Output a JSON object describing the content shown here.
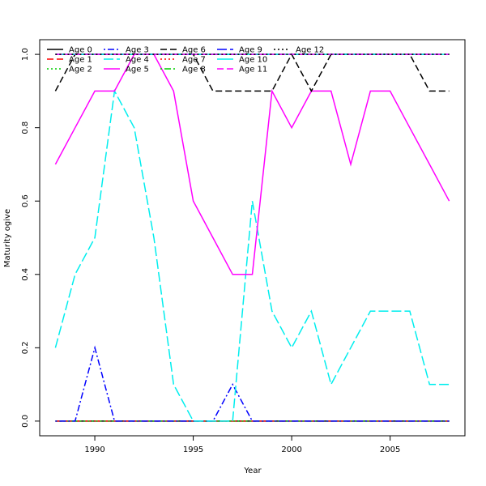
{
  "chart_data": {
    "type": "line",
    "title": "",
    "xlabel": "Year",
    "ylabel": "Maturity ogive",
    "xlim": [
      1987.2,
      2008.8
    ],
    "ylim": [
      -0.04,
      1.04
    ],
    "x_ticks": [
      1990,
      1995,
      2000,
      2005
    ],
    "y_ticks": [
      0.0,
      0.2,
      0.4,
      0.6,
      0.8,
      1.0
    ],
    "y_tick_labels": [
      "0.0",
      "0.2",
      "0.4",
      "0.6",
      "0.8",
      "1.0"
    ],
    "grid": false,
    "legend_position": "top-left",
    "x": [
      1988,
      1989,
      1990,
      1991,
      1992,
      1993,
      1994,
      1995,
      1996,
      1997,
      1998,
      1999,
      2000,
      2001,
      2002,
      2003,
      2004,
      2005,
      2006,
      2007,
      2008
    ],
    "series": [
      {
        "name": "Age 0",
        "color": "#000000",
        "dash": "solid",
        "values": [
          0,
          0,
          0,
          0,
          0,
          0,
          0,
          0,
          0,
          0,
          0,
          0,
          0,
          0,
          0,
          0,
          0,
          0,
          0,
          0,
          0
        ]
      },
      {
        "name": "Age 1",
        "color": "#ff0000",
        "dash": "dashed",
        "values": [
          0,
          0,
          0,
          0,
          0,
          0,
          0,
          0,
          0,
          0,
          0,
          0,
          0,
          0,
          0,
          0,
          0,
          0,
          0,
          0,
          0
        ]
      },
      {
        "name": "Age 2",
        "color": "#00cd00",
        "dash": "dotted",
        "values": [
          0,
          0,
          0,
          0,
          0,
          0,
          0,
          0,
          0,
          0,
          0,
          0,
          0,
          0,
          0,
          0,
          0,
          0,
          0,
          0,
          0
        ]
      },
      {
        "name": "Age 3",
        "color": "#0000ff",
        "dash": "dotdash",
        "values": [
          0,
          0,
          0.2,
          0,
          0,
          0,
          0,
          0,
          0,
          0.1,
          0,
          0,
          0,
          0,
          0,
          0,
          0,
          0,
          0,
          0,
          0
        ]
      },
      {
        "name": "Age 4",
        "color": "#00eeee",
        "dash": "longdash",
        "values": [
          0.2,
          0.4,
          0.5,
          0.9,
          0.8,
          0.5,
          0.1,
          0,
          0,
          0,
          0.6,
          0.3,
          0.2,
          0.3,
          0.1,
          0.2,
          0.3,
          0.3,
          0.3,
          0.1,
          0.1
        ]
      },
      {
        "name": "Age 5",
        "color": "#ff00ff",
        "dash": "solid",
        "values": [
          0.7,
          0.8,
          0.9,
          0.9,
          1.0,
          1.0,
          0.9,
          0.6,
          0.5,
          0.4,
          0.4,
          0.9,
          0.8,
          0.9,
          0.9,
          0.7,
          0.9,
          0.9,
          0.8,
          0.7,
          0.6
        ]
      },
      {
        "name": "Age 6",
        "color": "#000000",
        "dash": "dashed",
        "values": [
          0.9,
          1.0,
          1.0,
          1.0,
          1.0,
          1.0,
          1.0,
          1.0,
          0.9,
          0.9,
          0.9,
          0.9,
          1.0,
          0.9,
          1.0,
          1.0,
          1.0,
          1.0,
          1.0,
          0.9,
          0.9
        ]
      },
      {
        "name": "Age 7",
        "color": "#ff0000",
        "dash": "dotted",
        "values": [
          1,
          1,
          1,
          1,
          1,
          1,
          1,
          1,
          1,
          1,
          1,
          1,
          1,
          1,
          1,
          1,
          1,
          1,
          1,
          1,
          1
        ]
      },
      {
        "name": "Age 8",
        "color": "#00cd00",
        "dash": "dotdash",
        "values": [
          1,
          1,
          1,
          1,
          1,
          1,
          1,
          1,
          1,
          1,
          1,
          1,
          1,
          1,
          1,
          1,
          1,
          1,
          1,
          1,
          1
        ]
      },
      {
        "name": "Age 9",
        "color": "#0000ff",
        "dash": "longdash",
        "values": [
          1,
          1,
          1,
          1,
          1,
          1,
          1,
          1,
          1,
          1,
          1,
          1,
          1,
          1,
          1,
          1,
          1,
          1,
          1,
          1,
          1
        ]
      },
      {
        "name": "Age 10",
        "color": "#00eeee",
        "dash": "solid",
        "values": [
          1,
          1,
          1,
          1,
          1,
          1,
          1,
          1,
          1,
          1,
          1,
          1,
          1,
          1,
          1,
          1,
          1,
          1,
          1,
          1,
          1
        ]
      },
      {
        "name": "Age 11",
        "color": "#ff00ff",
        "dash": "dashed",
        "values": [
          1,
          1,
          1,
          1,
          1,
          1,
          1,
          1,
          1,
          1,
          1,
          1,
          1,
          1,
          1,
          1,
          1,
          1,
          1,
          1,
          1
        ]
      },
      {
        "name": "Age 12",
        "color": "#000000",
        "dash": "dotted",
        "values": [
          1,
          1,
          1,
          1,
          1,
          1,
          1,
          1,
          1,
          1,
          1,
          1,
          1,
          1,
          1,
          1,
          1,
          1,
          1,
          1,
          1
        ]
      }
    ]
  }
}
